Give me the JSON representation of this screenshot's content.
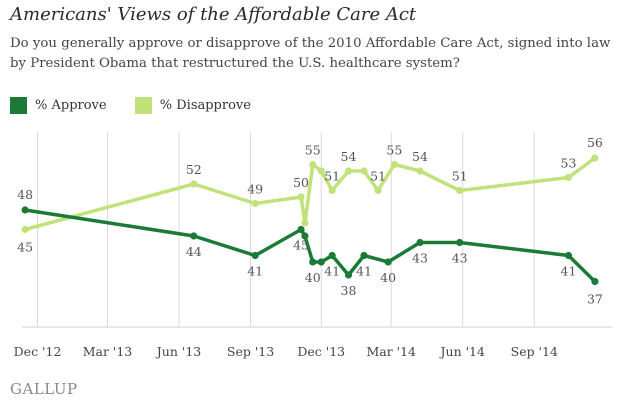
{
  "title": "Americans' Views of the Affordable Care Act",
  "subtitle": "Do you generally approve or disapprove of the 2010 Affordable Care Act, signed into law by President Obama that restructured the U.S. healthcare system?",
  "footer": "GALLUP",
  "legend": [
    {
      "label": "% Approve",
      "color": "#1b7a35"
    },
    {
      "label": "% Disapprove",
      "color": "#c1e27a"
    }
  ],
  "chart_data": {
    "type": "line",
    "x_axis": {
      "range": [
        "2012-11-11",
        "2014-12-10"
      ],
      "ticks": [
        {
          "date": "2012-12-01",
          "label": "Dec '12"
        },
        {
          "date": "2013-03-01",
          "label": "Mar '13"
        },
        {
          "date": "2013-06-01",
          "label": "Jun '13"
        },
        {
          "date": "2013-09-01",
          "label": "Sep '13"
        },
        {
          "date": "2013-12-01",
          "label": "Dec '13"
        },
        {
          "date": "2014-03-01",
          "label": "Mar '14"
        },
        {
          "date": "2014-06-01",
          "label": "Jun '14"
        },
        {
          "date": "2014-09-01",
          "label": "Sep '14"
        }
      ]
    },
    "y_axis": {
      "range": [
        30,
        60
      ],
      "grid": true
    },
    "series": [
      {
        "name": "% Approve",
        "color": "#1b7a35",
        "points": [
          {
            "x": "2012-11-15",
            "y": 48,
            "label": "48"
          },
          {
            "x": "2013-06-20",
            "y": 44,
            "label": "44"
          },
          {
            "x": "2013-09-07",
            "y": 41,
            "label": "41"
          },
          {
            "x": "2013-11-05",
            "y": 45,
            "label": "45"
          },
          {
            "x": "2013-11-10",
            "y": 44
          },
          {
            "x": "2013-11-20",
            "y": 40,
            "label": "40"
          },
          {
            "x": "2013-12-01",
            "y": 40
          },
          {
            "x": "2013-12-15",
            "y": 41,
            "label": "41"
          },
          {
            "x": "2014-01-05",
            "y": 38,
            "label": "38"
          },
          {
            "x": "2014-01-25",
            "y": 41,
            "label": "41"
          },
          {
            "x": "2014-02-25",
            "y": 40,
            "label": "40"
          },
          {
            "x": "2014-04-07",
            "y": 43,
            "label": "43"
          },
          {
            "x": "2014-05-28",
            "y": 43,
            "label": "43"
          },
          {
            "x": "2014-10-15",
            "y": 41,
            "label": "41"
          },
          {
            "x": "2014-11-18",
            "y": 37,
            "label": "37"
          }
        ]
      },
      {
        "name": "% Disapprove",
        "color": "#c1e27a",
        "points": [
          {
            "x": "2012-11-15",
            "y": 45,
            "label": "45"
          },
          {
            "x": "2013-06-20",
            "y": 52,
            "label": "52"
          },
          {
            "x": "2013-09-07",
            "y": 49,
            "label": "49"
          },
          {
            "x": "2013-11-05",
            "y": 50,
            "label": "50"
          },
          {
            "x": "2013-11-10",
            "y": 46
          },
          {
            "x": "2013-11-20",
            "y": 55,
            "label": "55"
          },
          {
            "x": "2013-12-01",
            "y": 54
          },
          {
            "x": "2013-12-15",
            "y": 51,
            "label": "51"
          },
          {
            "x": "2014-01-05",
            "y": 54,
            "label": "54"
          },
          {
            "x": "2014-01-25",
            "y": 54
          },
          {
            "x": "2014-02-12",
            "y": 51,
            "label": "51"
          },
          {
            "x": "2014-03-05",
            "y": 55,
            "label": "55"
          },
          {
            "x": "2014-04-07",
            "y": 54,
            "label": "54"
          },
          {
            "x": "2014-05-28",
            "y": 51,
            "label": "51"
          },
          {
            "x": "2014-10-15",
            "y": 53,
            "label": "53"
          },
          {
            "x": "2014-11-18",
            "y": 56,
            "label": "56"
          }
        ]
      }
    ]
  }
}
